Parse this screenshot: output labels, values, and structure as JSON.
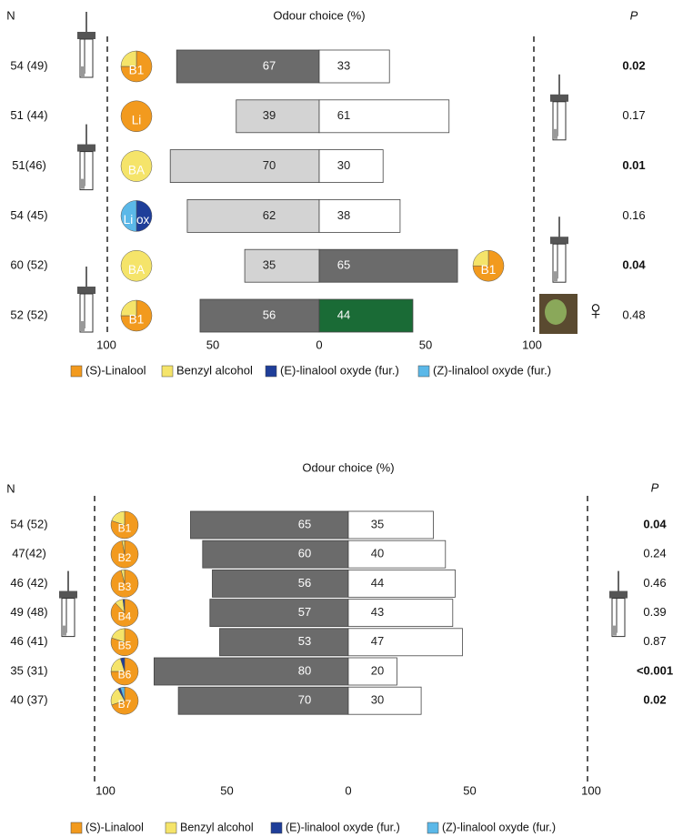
{
  "chart_data": [
    {
      "type": "bar",
      "title": "Odour choice (%)",
      "n_label": "N",
      "p_label": "P",
      "categories": [
        "54 (49)",
        "51 (44)",
        "51(46)",
        "54 (45)",
        "60 (52)",
        "52 (52)"
      ],
      "series": [
        {
          "values": [
            67,
            39,
            70,
            62,
            35,
            56
          ],
          "colors": [
            "#6b6b6b",
            "#d3d3d3",
            "#d3d3d3",
            "#d3d3d3",
            "#d3d3d3",
            "#6b6b6b"
          ]
        },
        {
          "values": [
            33,
            61,
            30,
            38,
            65,
            44
          ],
          "colors": [
            "#ffffff",
            "#ffffff",
            "#ffffff",
            "#ffffff",
            "#6b6b6b",
            "#1a6b36"
          ]
        }
      ],
      "p_values": [
        "0.02",
        "0.17",
        "0.01",
        "0.16",
        "0.04",
        "0.48"
      ],
      "p_bold": [
        true,
        false,
        true,
        false,
        true,
        false
      ],
      "pies": [
        {
          "label": "B1",
          "values": [
            75,
            25,
            0,
            0
          ]
        },
        {
          "label": "Li",
          "values": [
            100,
            0,
            0,
            0
          ]
        },
        {
          "label": "BA",
          "values": [
            0,
            100,
            0,
            0
          ]
        },
        {
          "label": "Li ox",
          "values": [
            0,
            0,
            50,
            50
          ]
        },
        {
          "label": "BA",
          "values": [
            0,
            100,
            0,
            0
          ]
        },
        {
          "label": "B1",
          "values": [
            75,
            25,
            0,
            0
          ]
        }
      ],
      "right_pies": [
        null,
        null,
        null,
        null,
        {
          "label": "B1",
          "values": [
            75,
            25,
            0,
            0
          ]
        },
        null
      ],
      "legend": [
        {
          "name": "(S)-Linalool",
          "color": "#f29a1e"
        },
        {
          "name": "Benzyl alcohol",
          "color": "#f5e46a"
        },
        {
          "name": "(E)-linalool oxyde (fur.)",
          "color": "#1f3e99"
        },
        {
          "name": "(Z)-linalool oxyde (fur.)",
          "color": "#5bb8e8"
        }
      ],
      "xlim": [
        -100,
        100
      ],
      "xticks": [
        {
          "value": -100,
          "label": "100"
        },
        {
          "value": -50,
          "label": "50"
        },
        0,
        50,
        100
      ],
      "female_symbol": "♀"
    },
    {
      "type": "bar",
      "title": "Odour choice (%)",
      "n_label": "N",
      "p_label": "P",
      "categories": [
        "54 (52)",
        "47(42)",
        "46 (42)",
        "49 (48)",
        "46 (41)",
        "35 (31)",
        "40 (37)"
      ],
      "series": [
        {
          "values": [
            65,
            60,
            56,
            57,
            53,
            80,
            70
          ],
          "colors": [
            "#6b6b6b",
            "#6b6b6b",
            "#6b6b6b",
            "#6b6b6b",
            "#6b6b6b",
            "#6b6b6b",
            "#6b6b6b"
          ]
        },
        {
          "values": [
            35,
            40,
            44,
            43,
            47,
            20,
            30
          ],
          "colors": [
            "#ffffff",
            "#ffffff",
            "#ffffff",
            "#ffffff",
            "#ffffff",
            "#ffffff",
            "#ffffff"
          ]
        }
      ],
      "p_values": [
        "0.04",
        "0.24",
        "0.46",
        "0.39",
        "0.87",
        "<0.001",
        "0.02"
      ],
      "p_bold": [
        true,
        false,
        false,
        false,
        false,
        true,
        true
      ],
      "pies": [
        {
          "label": "B1",
          "values": [
            80,
            20,
            0,
            0
          ]
        },
        {
          "label": "B2",
          "values": [
            97,
            3,
            0,
            0
          ]
        },
        {
          "label": "B3",
          "values": [
            96,
            4,
            0,
            0
          ]
        },
        {
          "label": "B4",
          "values": [
            88,
            10,
            2,
            0
          ]
        },
        {
          "label": "B5",
          "values": [
            80,
            20,
            0,
            0
          ]
        },
        {
          "label": "B6",
          "values": [
            75,
            20,
            5,
            0
          ]
        },
        {
          "label": "B7",
          "values": [
            70,
            22,
            3,
            5
          ]
        }
      ],
      "legend": [
        {
          "name": "(S)-Linalool",
          "color": "#f29a1e"
        },
        {
          "name": "Benzyl alcohol",
          "color": "#f5e46a"
        },
        {
          "name": "(E)-linalool oxyde (fur.)",
          "color": "#1f3e99"
        },
        {
          "name": "(Z)-linalool oxyde (fur.)",
          "color": "#5bb8e8"
        }
      ],
      "xlim": [
        -100,
        100
      ],
      "xticks": [
        {
          "value": -100,
          "label": "100"
        },
        {
          "value": -50,
          "label": "50"
        },
        0,
        50,
        100
      ]
    }
  ]
}
